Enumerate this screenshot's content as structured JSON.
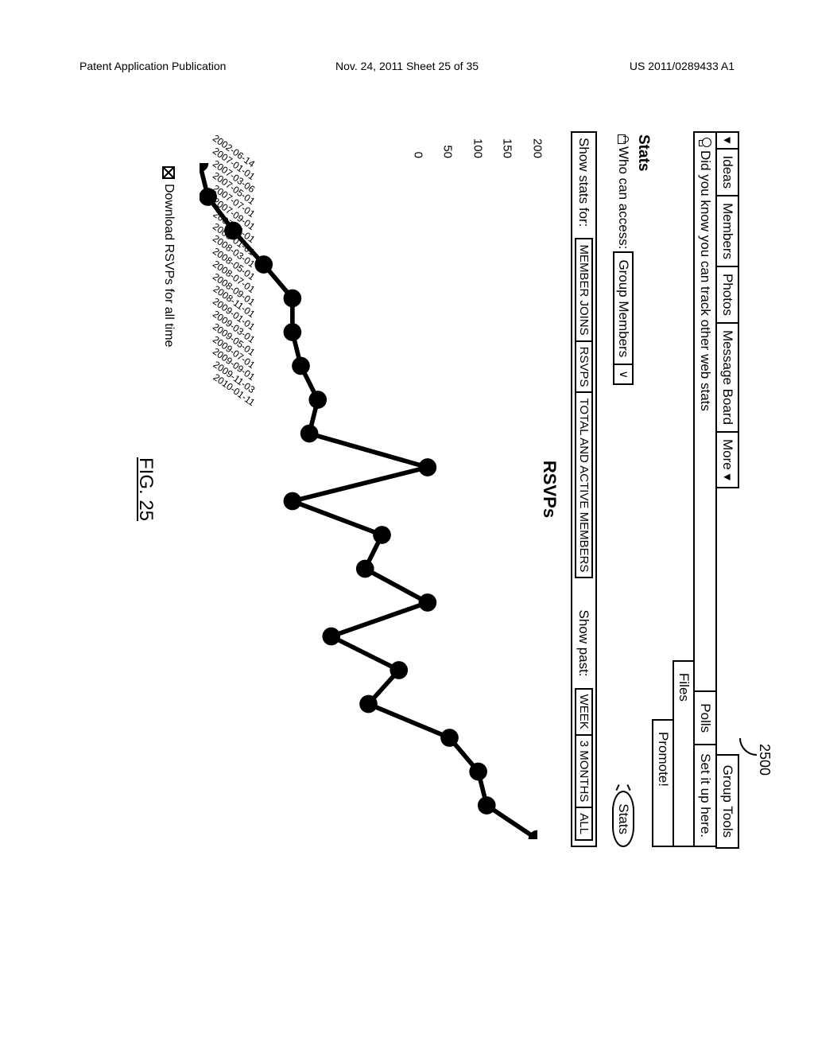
{
  "page_header": {
    "left": "Patent Application Publication",
    "center": "Nov. 24, 2011  Sheet 25 of 35",
    "right": "US 2011/0289433 A1"
  },
  "ref_number": "2500",
  "nav": {
    "tabs": [
      "Ideas",
      "Members",
      "Photos",
      "Message Board",
      "More ▾"
    ],
    "group_tools": "Group Tools"
  },
  "info": {
    "tip_text": "Did you know you can track other web stats",
    "polls": "Polls",
    "setup": "Set it up here.",
    "files": "Files",
    "promote": "Promote!"
  },
  "stats": {
    "title": "Stats",
    "access_label": "Who can access:",
    "access_select": "Group Members",
    "pill": "Stats"
  },
  "filters": {
    "stats_for_label": "Show stats for:",
    "stats_for_options": [
      "MEMBER JOINS",
      "RSVPS",
      "TOTAL AND ACTIVE MEMBERS"
    ],
    "past_label": "Show past:",
    "past_options": [
      "WEEK",
      "3 MONTHS",
      "ALL"
    ]
  },
  "chart": {
    "title": "RSVPs",
    "y": {
      "min": 0,
      "max": 200,
      "step": 50,
      "ticks": [
        0,
        50,
        100,
        150,
        200
      ]
    },
    "series_color": "#000000",
    "point_radius": 4,
    "line_width": 2,
    "background": "#ffffff",
    "x_labels": [
      "2002-06-14",
      "2007-01-01",
      "2007-03-06",
      "2007-05-01",
      "2007-07-01",
      "2007-09-01",
      "2007-11-01",
      "2008-01-01",
      "2008-03-01",
      "2008-05-01",
      "2008-07-01",
      "2008-09-01",
      "2008-11-01",
      "2009-01-01",
      "2009-03-01",
      "2009-05-01",
      "2009-07-01",
      "2009-09-01",
      "2009-11-03",
      "2010-01-11"
    ],
    "values": [
      0,
      5,
      20,
      38,
      55,
      55,
      60,
      70,
      65,
      135,
      55,
      108,
      98,
      135,
      78,
      118,
      100,
      148,
      165,
      170,
      200
    ]
  },
  "download_label": "Download RSVPs for all time",
  "figure_caption": "FIG. 25"
}
